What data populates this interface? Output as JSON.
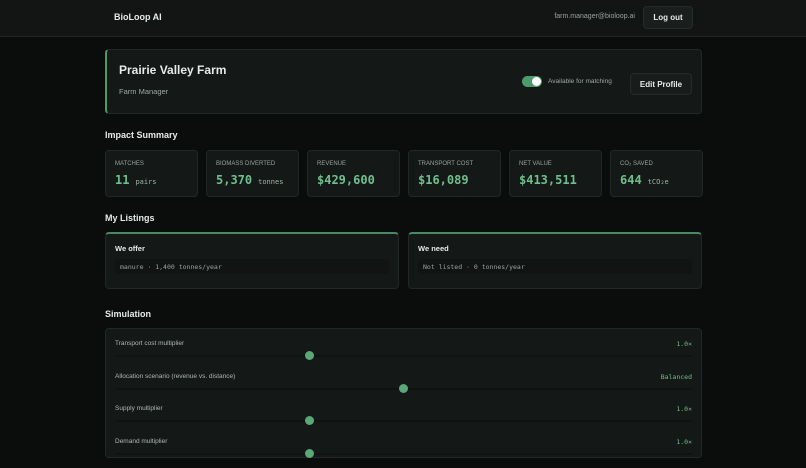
{
  "header": {
    "brand": "BioLoop AI",
    "email": "farm.manager@bioloop.ai",
    "logout": "Log out"
  },
  "profile": {
    "name": "Prairie Valley Farm",
    "role": "Farm Manager",
    "toggle_label": "Available for matching",
    "toggle_on": true,
    "edit": "Edit Profile"
  },
  "impact": {
    "title": "Impact Summary",
    "stats": [
      {
        "label": "MATCHES",
        "value": "11",
        "unit": "pairs"
      },
      {
        "label": "BIOMASS DIVERTED",
        "value": "5,370",
        "unit": "tonnes"
      },
      {
        "label": "REVENUE",
        "value": "$429,600",
        "unit": ""
      },
      {
        "label": "TRANSPORT COST",
        "value": "$16,089",
        "unit": ""
      },
      {
        "label": "NET VALUE",
        "value": "$413,511",
        "unit": ""
      },
      {
        "label": "CO₂ SAVED",
        "value": "644",
        "unit": "tCO₂e"
      }
    ]
  },
  "listings": {
    "title": "My Listings",
    "offer": {
      "title": "We offer",
      "text": "manure · 1,400 tonnes/year"
    },
    "need": {
      "title": "We need",
      "text": "Not listed · 0 tonnes/year"
    }
  },
  "simulation": {
    "title": "Simulation",
    "sliders": [
      {
        "label": "Transport cost multiplier",
        "value": "1.0×",
        "level": 0.337
      },
      {
        "label": "Allocation scenario (revenue vs. distance)",
        "value": "Balanced",
        "level": 0.5
      },
      {
        "label": "Supply multiplier",
        "value": "1.0×",
        "level": 0.337
      },
      {
        "label": "Demand multiplier",
        "value": "1.0×",
        "level": 0.337
      }
    ]
  },
  "colors": {
    "accent": "#5aa877",
    "background": "#0b0d0c"
  }
}
